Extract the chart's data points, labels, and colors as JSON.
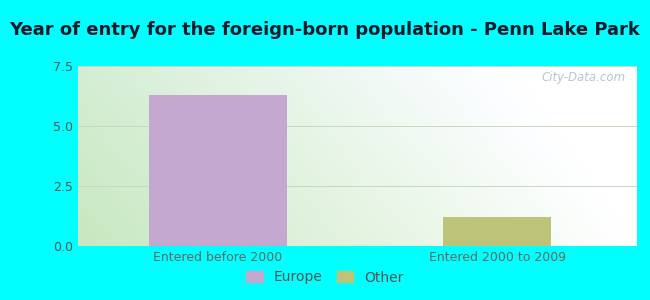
{
  "title": "Year of entry for the foreign-born population - Penn Lake Park",
  "categories": [
    "Entered before 2000",
    "Entered 2000 to 2009"
  ],
  "europe_values": [
    6.3,
    0.0
  ],
  "other_values": [
    0.0,
    1.2
  ],
  "europe_color": "#c4a8d0",
  "other_color": "#bdc47a",
  "bar_width": 0.55,
  "ylim": [
    0,
    7.5
  ],
  "yticks": [
    0,
    2.5,
    5,
    7.5
  ],
  "background_color": "#00ffff",
  "grid_color": "#c8d8c0",
  "title_fontsize": 13,
  "tick_fontsize": 9,
  "legend_fontsize": 10,
  "watermark": "City-Data.com",
  "grad_colors": [
    "#c8e8c8",
    "#f0f8f0",
    "#e8f4f8",
    "#f8ffff"
  ],
  "figsize": [
    6.5,
    3.0
  ],
  "dpi": 100
}
